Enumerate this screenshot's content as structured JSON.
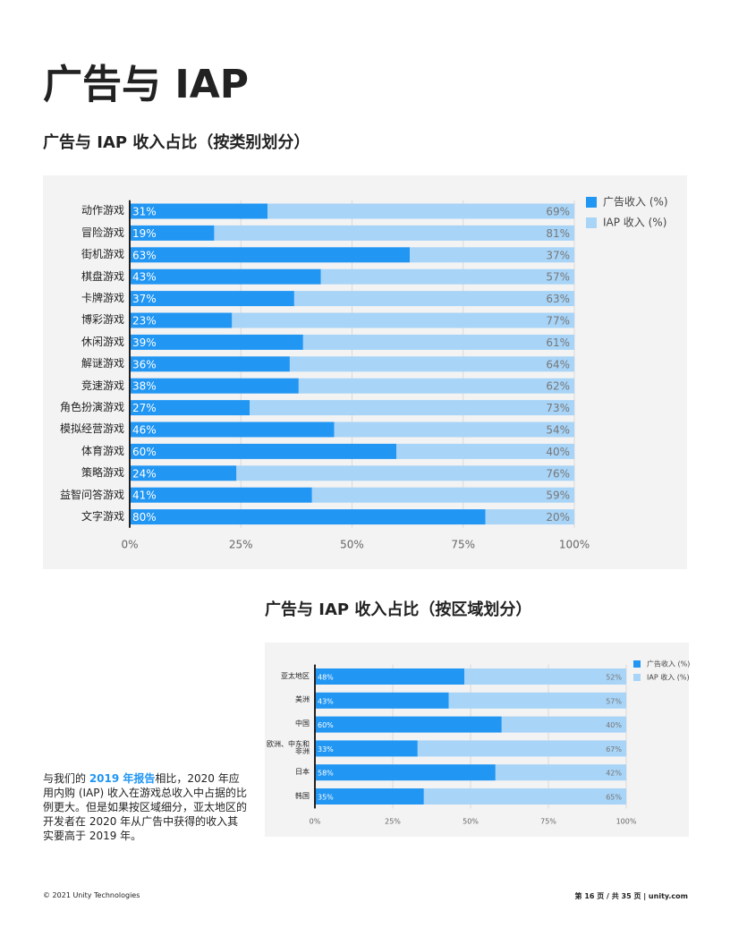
{
  "title": "广告与 IAP",
  "chart_data": [
    {
      "type": "bar",
      "orientation": "horizontal",
      "stacked": true,
      "title": "广告与 IAP 收入占比（按类别划分）",
      "categories": [
        "动作游戏",
        "冒险游戏",
        "街机游戏",
        "棋盘游戏",
        "卡牌游戏",
        "博彩游戏",
        "休闲游戏",
        "解谜游戏",
        "竞速游戏",
        "角色扮演游戏",
        "模拟经营游戏",
        "体育游戏",
        "策略游戏",
        "益智问答游戏",
        "文字游戏"
      ],
      "series": [
        {
          "name": "广告收入 (%)",
          "color": "#2196f3",
          "values": [
            31,
            19,
            63,
            43,
            37,
            23,
            39,
            36,
            38,
            27,
            46,
            60,
            24,
            41,
            80
          ],
          "value_labels": [
            "31%",
            "19%",
            "63%",
            "43%",
            "37%",
            "23%",
            "39%",
            "36%",
            "38%",
            "27%",
            "46%",
            "60%",
            "24%",
            "41%",
            "80%"
          ]
        },
        {
          "name": "IAP 收入 (%)",
          "color": "#a8d4f7",
          "values": [
            69,
            81,
            37,
            57,
            63,
            77,
            61,
            64,
            62,
            73,
            54,
            40,
            76,
            59,
            20
          ],
          "value_labels": [
            "69%",
            "81%",
            "37%",
            "57%",
            "63%",
            "77%",
            "61%",
            "64%",
            "62%",
            "73%",
            "54%",
            "40%",
            "76%",
            "59%",
            "20%"
          ]
        }
      ],
      "xlim": [
        0,
        100
      ],
      "xticks": [
        {
          "value": 0,
          "label": "0%"
        },
        {
          "value": 25,
          "label": "25%"
        },
        {
          "value": 50,
          "label": "50%"
        },
        {
          "value": 75,
          "label": "75%"
        },
        {
          "value": 100,
          "label": "100%"
        }
      ],
      "grid": true,
      "legend": "top-right"
    },
    {
      "type": "bar",
      "orientation": "horizontal",
      "stacked": true,
      "title": "广告与 IAP 收入占比（按区域划分）",
      "categories": [
        "亚太地区",
        "美洲",
        "中国",
        "欧洲、中东和非洲",
        "日本",
        "韩国"
      ],
      "series": [
        {
          "name": "广告收入 (%)",
          "color": "#2196f3",
          "values": [
            48,
            43,
            60,
            33,
            58,
            35
          ],
          "value_labels": [
            "48%",
            "43%",
            "60%",
            "33%",
            "58%",
            "35%"
          ]
        },
        {
          "name": "IAP 收入 (%)",
          "color": "#a8d4f7",
          "values": [
            52,
            57,
            40,
            67,
            42,
            65
          ],
          "value_labels": [
            "52%",
            "57%",
            "40%",
            "67%",
            "42%",
            "65%"
          ]
        }
      ],
      "xlim": [
        0,
        100
      ],
      "xticks": [
        {
          "value": 0,
          "label": "0%"
        },
        {
          "value": 25,
          "label": "25%"
        },
        {
          "value": 50,
          "label": "50%"
        },
        {
          "value": 75,
          "label": "75%"
        },
        {
          "value": 100,
          "label": "100%"
        }
      ],
      "grid": true,
      "legend": "top-right"
    }
  ],
  "body": {
    "before": "与我们的 ",
    "link": "2019 年报告",
    "after": "相比，2020 年应用内购 (IAP) 收入在游戏总收入中占据的比例更大。但是如果按区域细分，亚太地区的开发者在 2020 年从广告中获得的收入其实要高于 2019 年。"
  },
  "footer": {
    "left": "© 2021 Unity Technologies",
    "right": "第 16 页 / 共 35 页 | unity.com"
  }
}
